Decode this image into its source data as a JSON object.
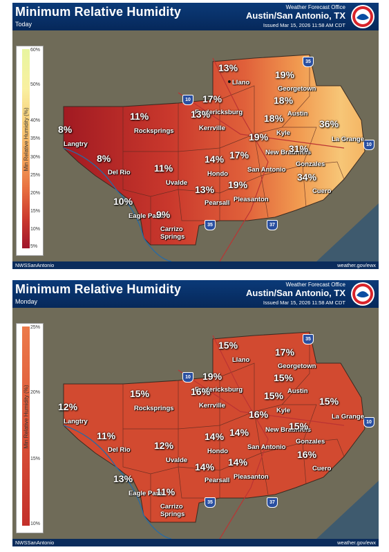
{
  "panels": [
    {
      "title": "Minimum Relative Humidity",
      "day": "Today",
      "office": "Weather Forecast Office",
      "place": "Austin/San Antonio, TX",
      "issued": "Issued Mar 15, 2026 11:58 AM CDT",
      "footer_left": "NWSSanAntonio",
      "footer_right": "weather.gov/ewx",
      "legend_label": "Min Relative Humidity (%)",
      "legend_ticks": [
        "60%",
        "50%",
        "40%",
        "35%",
        "30%",
        "25%",
        "20%",
        "15%",
        "10%",
        "5%"
      ],
      "values": {
        "llano": "13%",
        "georgetown": "19%",
        "austin": "18%",
        "fredericksburg": "17%",
        "kerrville": "13%",
        "rocksprings": "11%",
        "langtry": "8%",
        "delrio": "8%",
        "uvalde": "11%",
        "hondo": "14%",
        "sanantonio": "17%",
        "newbraunfels": "19%",
        "kyle": "18%",
        "lagrange": "36%",
        "gonzales": "31%",
        "cuero": "34%",
        "pleasanton": "19%",
        "pearsall": "13%",
        "eaglepass": "10%",
        "carrizo": "9%"
      }
    },
    {
      "title": "Minimum Relative Humidity",
      "day": "Monday",
      "office": "Weather Forecast Office",
      "place": "Austin/San Antonio, TX",
      "issued": "Issued Mar 15, 2026 11:58 AM CDT",
      "footer_left": "NWSSanAntonio",
      "footer_right": "weather.gov/ewx",
      "legend_label": "Min Relative Humidity (%)",
      "legend_ticks": [
        "25%",
        "20%",
        "15%",
        "10%"
      ],
      "values": {
        "llano": "15%",
        "georgetown": "17%",
        "austin": "15%",
        "fredericksburg": "19%",
        "kerrville": "16%",
        "rocksprings": "15%",
        "langtry": "12%",
        "delrio": "11%",
        "uvalde": "12%",
        "hondo": "14%",
        "sanantonio": "14%",
        "newbraunfels": "16%",
        "kyle": "15%",
        "lagrange": "15%",
        "gonzales": "15%",
        "cuero": "16%",
        "pleasanton": "14%",
        "pearsall": "14%",
        "eaglepass": "13%",
        "carrizo": "11%"
      }
    }
  ],
  "cities": {
    "llano": "Llano",
    "georgetown": "Georgetown",
    "austin": "Austin",
    "fredericksburg": "Fredericksburg",
    "kerrville": "Kerrville",
    "rocksprings": "Rocksprings",
    "langtry": "Langtry",
    "delrio": "Del Rio",
    "uvalde": "Uvalde",
    "hondo": "Hondo",
    "sanantonio": "San Antonio",
    "newbraunfels": "New Braunfels",
    "kyle": "Kyle",
    "lagrange": "La Grange",
    "gonzales": "Gonzales",
    "cuero": "Cuero",
    "pleasanton": "Pleasanton",
    "pearsall": "Pearsall",
    "eaglepass": "Eagle Pass",
    "carrizo": "Carrizo Springs"
  },
  "highways": [
    "35",
    "10",
    "35",
    "37",
    "10"
  ],
  "logo_text": "NOAA"
}
